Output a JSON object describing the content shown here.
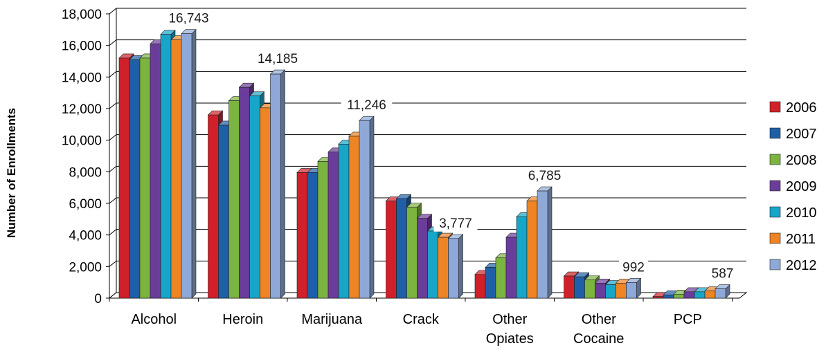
{
  "chart_data": {
    "type": "bar",
    "ylabel": "Number of Enrollments",
    "ylim": [
      0,
      18000
    ],
    "yticks": [
      "0",
      "2,000",
      "4,000",
      "6,000",
      "8,000",
      "10,000",
      "12,000",
      "14,000",
      "16,000",
      "18,000"
    ],
    "grid": true,
    "legend_position": "right",
    "categories": [
      [
        "Alcohol"
      ],
      [
        "Heroin"
      ],
      [
        "Marijuana"
      ],
      [
        "Crack"
      ],
      [
        "Other",
        "Opiates"
      ],
      [
        "Other",
        "Cocaine"
      ],
      [
        "PCP"
      ]
    ],
    "series": [
      {
        "name": "2006",
        "color": "#d0202a",
        "values": [
          15200,
          11600,
          7950,
          6150,
          1500,
          1400,
          100
        ]
      },
      {
        "name": "2007",
        "color": "#1f5fa8",
        "values": [
          15100,
          10950,
          7950,
          6300,
          1950,
          1350,
          200
        ]
      },
      {
        "name": "2008",
        "color": "#7cb440",
        "values": [
          15200,
          12500,
          8650,
          5750,
          2550,
          1150,
          250
        ]
      },
      {
        "name": "2009",
        "color": "#6a3d9a",
        "values": [
          16100,
          13350,
          9250,
          5050,
          3850,
          950,
          400
        ]
      },
      {
        "name": "2010",
        "color": "#17a5c8",
        "values": [
          16700,
          12800,
          9750,
          4250,
          5150,
          850,
          400
        ]
      },
      {
        "name": "2011",
        "color": "#ee8424",
        "values": [
          16350,
          12050,
          10250,
          3850,
          6150,
          950,
          450
        ]
      },
      {
        "name": "2012",
        "color": "#8ea9d8",
        "values": [
          16743,
          14185,
          11246,
          3777,
          6785,
          992,
          587
        ]
      }
    ],
    "data_labels": [
      "16,743",
      "14,185",
      "11,246",
      "3,777",
      "6,785",
      "992",
      "587"
    ]
  }
}
